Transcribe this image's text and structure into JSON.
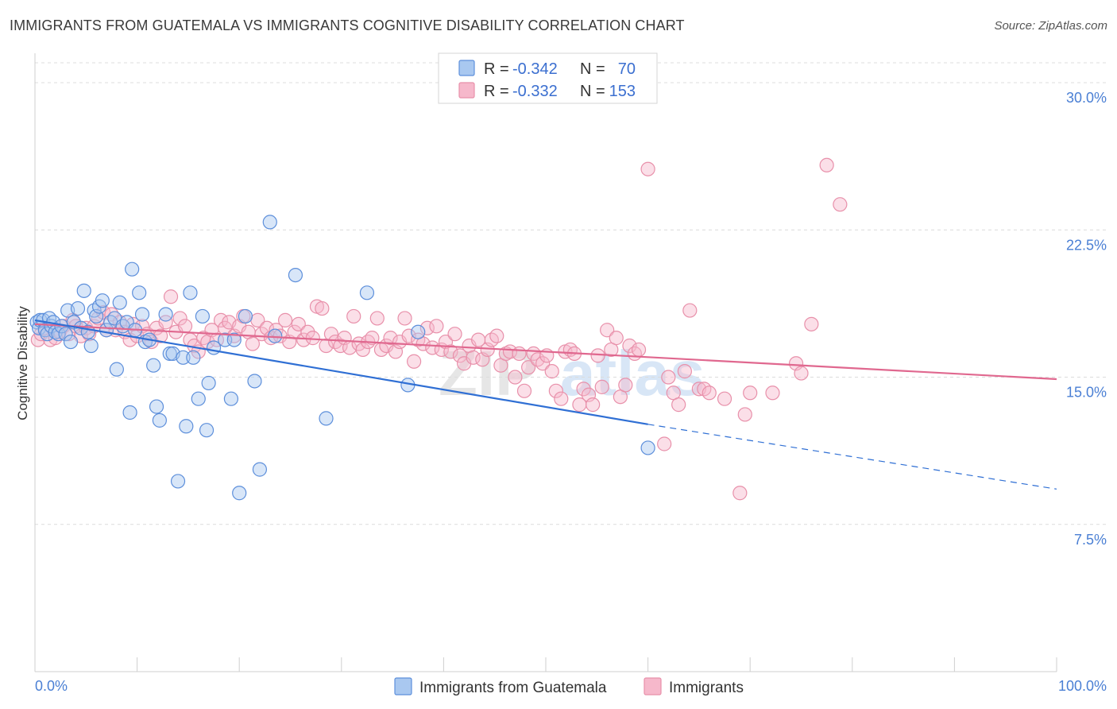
{
  "header": {
    "title": "IMMIGRANTS FROM GUATEMALA VS IMMIGRANTS COGNITIVE DISABILITY CORRELATION CHART",
    "source": "Source: ZipAtlas.com"
  },
  "watermark": {
    "left": "ZIP",
    "right": "atlas"
  },
  "legend": {
    "rows": [
      {
        "r_label": "R =",
        "r_value": "-0.342",
        "n_label": "N =",
        "n_value": "70"
      },
      {
        "r_label": "R =",
        "r_value": "-0.332",
        "n_label": "N =",
        "n_value": "153"
      }
    ]
  },
  "bottom_legend": [
    "Immigrants from Guatemala",
    "Immigrants"
  ],
  "colors": {
    "blue_fill": "#a9c8f0",
    "blue_stroke": "#5d8fdb",
    "blue_line": "#2f6fd4",
    "pink_fill": "#f6b8cb",
    "pink_stroke": "#e890aa",
    "pink_line": "#e0688f",
    "grid": "#dcdcdc",
    "tick_text": "#4a7fd4"
  },
  "chart_data": {
    "type": "scatter",
    "title": "IMMIGRANTS FROM GUATEMALA VS IMMIGRANTS COGNITIVE DISABILITY CORRELATION CHART",
    "xlabel": "",
    "ylabel": "Cognitive Disability",
    "xlim": [
      0,
      100
    ],
    "ylim": [
      0,
      31.5
    ],
    "x_tick_labels": [
      "0.0%",
      "100.0%"
    ],
    "y_ticks": [
      7.5,
      15.0,
      22.5,
      30.0
    ],
    "y_tick_labels": [
      "7.5%",
      "15.0%",
      "22.5%",
      "30.0%"
    ],
    "grid": "horizontal dashed",
    "legend_position": "top-center",
    "series": [
      {
        "name": "Immigrants from Guatemala",
        "color": "blue",
        "r": -0.342,
        "n": 70,
        "trend": {
          "x": [
            0,
            60
          ],
          "y": [
            17.9,
            12.6
          ],
          "dashed_extension": {
            "x": [
              60,
              100
            ],
            "y": [
              12.6,
              9.3
            ]
          }
        },
        "points": [
          [
            0.2,
            17.8
          ],
          [
            0.4,
            17.5
          ],
          [
            0.5,
            17.9
          ],
          [
            0.8,
            17.9
          ],
          [
            1.0,
            17.4
          ],
          [
            1.2,
            17.2
          ],
          [
            1.4,
            18.0
          ],
          [
            1.6,
            17.6
          ],
          [
            1.8,
            17.8
          ],
          [
            2.0,
            17.3
          ],
          [
            2.3,
            17.2
          ],
          [
            2.6,
            17.6
          ],
          [
            3.0,
            17.2
          ],
          [
            3.2,
            18.4
          ],
          [
            3.5,
            16.8
          ],
          [
            3.8,
            17.8
          ],
          [
            4.2,
            18.5
          ],
          [
            4.5,
            17.5
          ],
          [
            4.8,
            19.4
          ],
          [
            5.2,
            17.3
          ],
          [
            5.5,
            16.6
          ],
          [
            5.8,
            18.4
          ],
          [
            6.0,
            18.1
          ],
          [
            6.3,
            18.6
          ],
          [
            6.6,
            18.9
          ],
          [
            7.0,
            17.4
          ],
          [
            7.4,
            17.8
          ],
          [
            7.8,
            18.0
          ],
          [
            8.0,
            15.4
          ],
          [
            8.3,
            18.8
          ],
          [
            8.6,
            17.6
          ],
          [
            9.0,
            17.8
          ],
          [
            9.3,
            13.2
          ],
          [
            9.5,
            20.5
          ],
          [
            9.8,
            17.4
          ],
          [
            10.2,
            19.3
          ],
          [
            10.5,
            18.2
          ],
          [
            10.8,
            16.8
          ],
          [
            11.2,
            16.9
          ],
          [
            11.6,
            15.6
          ],
          [
            11.9,
            13.5
          ],
          [
            12.2,
            12.8
          ],
          [
            12.8,
            18.2
          ],
          [
            13.2,
            16.2
          ],
          [
            13.5,
            16.2
          ],
          [
            14.0,
            9.7
          ],
          [
            14.5,
            16.0
          ],
          [
            14.8,
            12.5
          ],
          [
            15.2,
            19.3
          ],
          [
            15.5,
            16.0
          ],
          [
            16.0,
            13.9
          ],
          [
            16.4,
            18.1
          ],
          [
            16.8,
            12.3
          ],
          [
            17.0,
            14.7
          ],
          [
            17.5,
            16.5
          ],
          [
            18.6,
            16.9
          ],
          [
            19.2,
            13.9
          ],
          [
            19.5,
            16.9
          ],
          [
            20.0,
            9.1
          ],
          [
            20.6,
            18.1
          ],
          [
            21.5,
            14.8
          ],
          [
            22.0,
            10.3
          ],
          [
            23.0,
            22.9
          ],
          [
            23.5,
            17.1
          ],
          [
            25.5,
            20.2
          ],
          [
            28.5,
            12.9
          ],
          [
            32.5,
            19.3
          ],
          [
            36.5,
            14.6
          ],
          [
            37.5,
            17.3
          ],
          [
            60.0,
            11.4
          ]
        ]
      },
      {
        "name": "Immigrants",
        "color": "pink",
        "r": -0.332,
        "n": 153,
        "trend": {
          "x": [
            0,
            100
          ],
          "y": [
            17.7,
            14.9
          ]
        },
        "points": [
          [
            0.3,
            16.9
          ],
          [
            0.6,
            17.2
          ],
          [
            1.0,
            17.5
          ],
          [
            1.5,
            16.9
          ],
          [
            2.0,
            17.0
          ],
          [
            2.4,
            17.3
          ],
          [
            2.8,
            17.6
          ],
          [
            3.3,
            17.2
          ],
          [
            3.7,
            17.9
          ],
          [
            4.0,
            17.6
          ],
          [
            4.5,
            17.1
          ],
          [
            5.0,
            17.5
          ],
          [
            5.3,
            17.2
          ],
          [
            5.8,
            17.6
          ],
          [
            6.2,
            18.0
          ],
          [
            6.7,
            18.3
          ],
          [
            7.0,
            17.4
          ],
          [
            7.5,
            18.2
          ],
          [
            7.9,
            17.4
          ],
          [
            8.3,
            17.8
          ],
          [
            8.8,
            17.3
          ],
          [
            9.3,
            16.9
          ],
          [
            9.6,
            17.7
          ],
          [
            10.0,
            17.1
          ],
          [
            10.5,
            17.6
          ],
          [
            11.0,
            17.2
          ],
          [
            11.4,
            16.8
          ],
          [
            11.9,
            17.5
          ],
          [
            12.3,
            17.1
          ],
          [
            12.8,
            17.8
          ],
          [
            13.3,
            19.1
          ],
          [
            13.8,
            17.3
          ],
          [
            14.2,
            18.0
          ],
          [
            14.7,
            17.6
          ],
          [
            15.2,
            16.9
          ],
          [
            15.6,
            16.6
          ],
          [
            16.0,
            16.3
          ],
          [
            16.5,
            17.0
          ],
          [
            16.9,
            16.8
          ],
          [
            17.3,
            17.4
          ],
          [
            17.8,
            16.9
          ],
          [
            18.2,
            17.9
          ],
          [
            18.6,
            17.5
          ],
          [
            19.0,
            17.8
          ],
          [
            19.5,
            17.1
          ],
          [
            20.0,
            17.6
          ],
          [
            20.4,
            18.1
          ],
          [
            20.9,
            17.3
          ],
          [
            21.3,
            16.7
          ],
          [
            21.8,
            17.9
          ],
          [
            22.2,
            17.2
          ],
          [
            22.7,
            17.5
          ],
          [
            23.1,
            17.0
          ],
          [
            23.6,
            17.4
          ],
          [
            24.0,
            17.1
          ],
          [
            24.5,
            17.9
          ],
          [
            24.9,
            16.8
          ],
          [
            25.4,
            17.3
          ],
          [
            25.8,
            17.7
          ],
          [
            26.3,
            16.9
          ],
          [
            26.7,
            17.3
          ],
          [
            27.2,
            17.0
          ],
          [
            27.6,
            18.6
          ],
          [
            28.1,
            18.5
          ],
          [
            28.5,
            16.6
          ],
          [
            29.0,
            17.2
          ],
          [
            29.4,
            16.8
          ],
          [
            29.9,
            16.6
          ],
          [
            30.3,
            17.0
          ],
          [
            30.8,
            16.5
          ],
          [
            31.2,
            18.1
          ],
          [
            31.7,
            16.7
          ],
          [
            32.1,
            16.4
          ],
          [
            32.6,
            16.8
          ],
          [
            33.0,
            17.0
          ],
          [
            33.5,
            18.0
          ],
          [
            33.9,
            16.4
          ],
          [
            34.4,
            16.6
          ],
          [
            34.8,
            17.0
          ],
          [
            35.3,
            16.3
          ],
          [
            35.7,
            16.8
          ],
          [
            36.2,
            18.0
          ],
          [
            36.6,
            17.1
          ],
          [
            37.1,
            15.8
          ],
          [
            37.5,
            16.9
          ],
          [
            38.0,
            16.7
          ],
          [
            38.4,
            17.5
          ],
          [
            38.9,
            16.5
          ],
          [
            39.3,
            17.6
          ],
          [
            39.8,
            16.4
          ],
          [
            40.2,
            16.8
          ],
          [
            40.7,
            16.3
          ],
          [
            41.1,
            17.2
          ],
          [
            41.6,
            16.1
          ],
          [
            42.0,
            15.7
          ],
          [
            42.5,
            16.6
          ],
          [
            42.9,
            16.0
          ],
          [
            43.4,
            16.9
          ],
          [
            43.8,
            15.9
          ],
          [
            44.3,
            16.4
          ],
          [
            44.7,
            16.9
          ],
          [
            45.2,
            17.1
          ],
          [
            45.6,
            15.6
          ],
          [
            46.1,
            16.2
          ],
          [
            46.5,
            16.3
          ],
          [
            47.0,
            15.0
          ],
          [
            47.4,
            16.2
          ],
          [
            47.9,
            14.3
          ],
          [
            48.3,
            15.5
          ],
          [
            48.8,
            16.2
          ],
          [
            49.2,
            15.9
          ],
          [
            49.7,
            15.7
          ],
          [
            50.1,
            16.1
          ],
          [
            50.6,
            15.3
          ],
          [
            51.0,
            14.3
          ],
          [
            51.5,
            13.9
          ],
          [
            51.9,
            16.3
          ],
          [
            52.4,
            16.4
          ],
          [
            52.8,
            16.2
          ],
          [
            53.3,
            13.6
          ],
          [
            53.7,
            14.4
          ],
          [
            54.2,
            14.1
          ],
          [
            54.6,
            13.6
          ],
          [
            55.1,
            16.1
          ],
          [
            55.5,
            14.5
          ],
          [
            56.0,
            17.4
          ],
          [
            56.4,
            16.4
          ],
          [
            56.9,
            17.0
          ],
          [
            57.3,
            14.0
          ],
          [
            57.8,
            14.6
          ],
          [
            58.2,
            16.6
          ],
          [
            58.7,
            16.2
          ],
          [
            59.1,
            16.4
          ],
          [
            60.0,
            25.6
          ],
          [
            61.6,
            11.6
          ],
          [
            62.0,
            15.0
          ],
          [
            62.5,
            14.2
          ],
          [
            63.0,
            13.6
          ],
          [
            63.6,
            15.3
          ],
          [
            64.1,
            18.4
          ],
          [
            65.0,
            14.4
          ],
          [
            65.5,
            14.4
          ],
          [
            66.0,
            14.2
          ],
          [
            67.5,
            13.9
          ],
          [
            69.0,
            9.1
          ],
          [
            69.5,
            13.1
          ],
          [
            70.0,
            14.2
          ],
          [
            72.2,
            14.2
          ],
          [
            74.5,
            15.7
          ],
          [
            75.0,
            15.2
          ],
          [
            76.0,
            17.7
          ],
          [
            77.5,
            25.8
          ],
          [
            78.8,
            23.8
          ]
        ]
      }
    ]
  }
}
